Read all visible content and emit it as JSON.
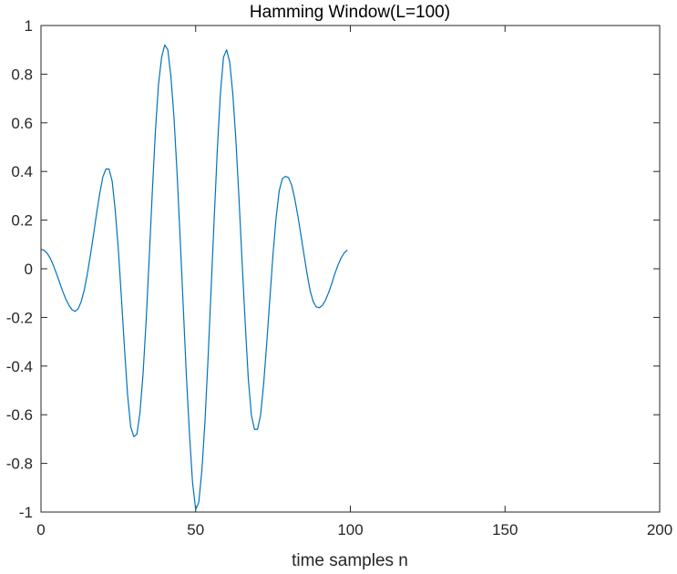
{
  "chart_data": {
    "type": "line",
    "title": "Hamming Window(L=100)",
    "xlabel": "time samples n",
    "ylabel": "",
    "xlim": [
      0,
      200
    ],
    "ylim": [
      -1,
      1
    ],
    "grid": false,
    "box": true,
    "line_color": "#0072BD",
    "x_ticks": [
      {
        "value": 0,
        "label": "0"
      },
      {
        "value": 50,
        "label": "50"
      },
      {
        "value": 100,
        "label": "100"
      },
      {
        "value": 150,
        "label": "150"
      },
      {
        "value": 200,
        "label": "200"
      }
    ],
    "y_ticks": [
      {
        "value": 1,
        "label": "1"
      },
      {
        "value": 0.8,
        "label": "0.8"
      },
      {
        "value": 0.6,
        "label": "0.6"
      },
      {
        "value": 0.4,
        "label": "0.4"
      },
      {
        "value": 0.2,
        "label": "0.2"
      },
      {
        "value": 0,
        "label": "0"
      },
      {
        "value": -0.2,
        "label": "-0.2"
      },
      {
        "value": -0.4,
        "label": "-0.4"
      },
      {
        "value": -0.6,
        "label": "-0.6"
      },
      {
        "value": -0.8,
        "label": "-0.8"
      },
      {
        "value": -1,
        "label": "-1"
      }
    ],
    "series": [
      {
        "x": [
          0,
          1,
          2,
          3,
          4,
          5,
          6,
          7,
          8,
          9,
          10,
          11,
          12,
          13,
          14,
          15,
          16,
          17,
          18,
          19,
          20,
          21,
          22,
          23,
          24,
          25,
          26,
          27,
          28,
          29,
          30,
          31,
          32,
          33,
          34,
          35,
          36,
          37,
          38,
          39,
          40,
          41,
          42,
          43,
          44,
          45,
          46,
          47,
          48,
          49,
          50,
          51,
          52,
          53,
          54,
          55,
          56,
          57,
          58,
          59,
          60,
          61,
          62,
          63,
          64,
          65,
          66,
          67,
          68,
          69,
          70,
          71,
          72,
          73,
          74,
          75,
          76,
          77,
          78,
          79,
          80,
          81,
          82,
          83,
          84,
          85,
          86,
          87,
          88,
          89,
          90,
          91,
          92,
          93,
          94,
          95,
          96,
          97,
          98,
          99
        ],
        "y": [
          0.08,
          0.076,
          0.064,
          0.043,
          0.014,
          -0.02,
          -0.056,
          -0.092,
          -0.124,
          -0.149,
          -0.168,
          -0.175,
          -0.165,
          -0.135,
          -0.086,
          -0.02,
          0.058,
          0.142,
          0.23,
          0.31,
          0.378,
          0.41,
          0.41,
          0.36,
          0.24,
          0.08,
          -0.12,
          -0.33,
          -0.52,
          -0.65,
          -0.69,
          -0.68,
          -0.59,
          -0.43,
          -0.21,
          0.05,
          0.32,
          0.57,
          0.76,
          0.87,
          0.92,
          0.9,
          0.79,
          0.62,
          0.39,
          0.12,
          -0.16,
          -0.44,
          -0.68,
          -0.88,
          -0.99,
          -0.96,
          -0.83,
          -0.63,
          -0.37,
          -0.08,
          0.21,
          0.49,
          0.72,
          0.87,
          0.9,
          0.85,
          0.72,
          0.53,
          0.29,
          0.03,
          -0.22,
          -0.45,
          -0.6,
          -0.66,
          -0.66,
          -0.6,
          -0.47,
          -0.3,
          -0.12,
          0.06,
          0.21,
          0.32,
          0.37,
          0.38,
          0.375,
          0.345,
          0.29,
          0.22,
          0.14,
          0.06,
          -0.02,
          -0.09,
          -0.135,
          -0.157,
          -0.16,
          -0.15,
          -0.128,
          -0.097,
          -0.06,
          -0.02,
          0.015,
          0.044,
          0.065,
          0.077
        ]
      }
    ]
  }
}
